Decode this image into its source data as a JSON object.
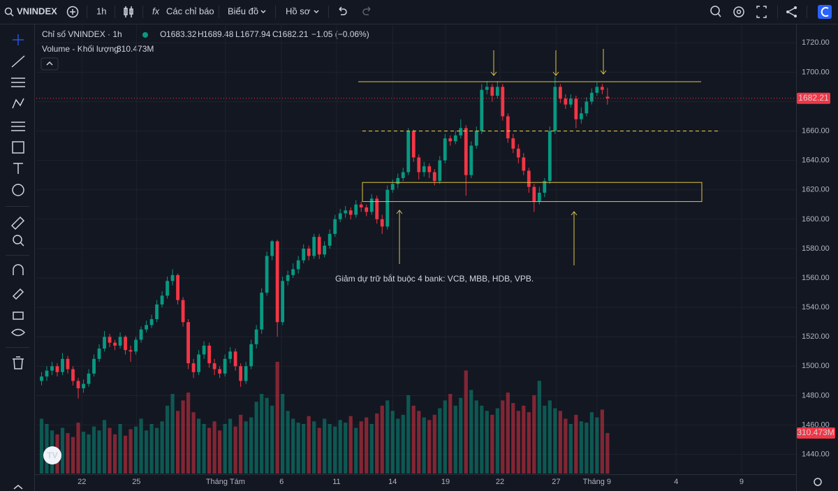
{
  "toolbar": {
    "symbol": "VNINDEX",
    "interval": "1h",
    "indicators": "Các chỉ báo",
    "chart": "Biểu đồ",
    "profile": "Hồ sơ"
  },
  "chart_data": {
    "type": "candlestick",
    "title": "Chỉ số VNINDEX · 1h",
    "ohlc_letters": [
      "O",
      "H",
      "L",
      "C"
    ],
    "change": "−1.05 (−0.06%)",
    "volume_title": "Volume - Khối lượng",
    "last_volume_label": "310.473M",
    "up_color": "#089981",
    "down_color": "#f23645",
    "annotation": "Giảm dự trữ bắt buộc 4 bank: VCB, MBB, HDB, VPB.",
    "levels": [
      1693.5,
      1660
    ],
    "zone": [
      1612,
      1625
    ],
    "ylim": [
      1427,
      1732
    ],
    "yticks": [
      {
        "value": 1440,
        "label": "1440.00"
      },
      {
        "value": 1460,
        "label": "1460.00"
      },
      {
        "value": 1480,
        "label": "1480.00"
      },
      {
        "value": 1500,
        "label": "1500.00"
      },
      {
        "value": 1520,
        "label": "1520.00"
      },
      {
        "value": 1540,
        "label": "1540.00"
      },
      {
        "value": 1560,
        "label": "1560.00"
      },
      {
        "value": 1580,
        "label": "1580.00"
      },
      {
        "value": 1600,
        "label": "1600.00"
      },
      {
        "value": 1620,
        "label": "1620.00"
      },
      {
        "value": 1640,
        "label": "1640.00"
      },
      {
        "value": 1660,
        "label": "1660.00"
      },
      {
        "value": 1680,
        "label": "1680.00"
      },
      {
        "value": 1700,
        "label": "1700.00"
      },
      {
        "value": 1720,
        "label": "1720.00"
      }
    ],
    "xlim": [
      -1,
      144
    ],
    "xticks": [
      {
        "value": 7.7,
        "label": "22"
      },
      {
        "value": 18.1,
        "label": "25"
      },
      {
        "value": 35.1,
        "label": "Tháng Tám"
      },
      {
        "value": 45.8,
        "label": "6"
      },
      {
        "value": 56.3,
        "label": "11"
      },
      {
        "value": 67.0,
        "label": "14"
      },
      {
        "value": 77.1,
        "label": "19"
      },
      {
        "value": 87.5,
        "label": "22"
      },
      {
        "value": 98.2,
        "label": "27"
      },
      {
        "value": 106.0,
        "label": "Tháng 9"
      },
      {
        "value": 121.1,
        "label": "4"
      },
      {
        "value": 133.6,
        "label": "9"
      }
    ],
    "open": [
      1490,
      1493,
      1497,
      1500,
      1496,
      1505,
      1498,
      1490,
      1485,
      1488,
      1495,
      1505,
      1512,
      1520,
      1516,
      1514,
      1520,
      1511,
      1510,
      1518,
      1525,
      1528,
      1532,
      1542,
      1548,
      1558,
      1562,
      1545,
      1530,
      1502,
      1496,
      1508,
      1514,
      1502,
      1498,
      1495,
      1505,
      1510,
      1500,
      1490,
      1500,
      1515,
      1525,
      1550,
      1575,
      1585,
      1530,
      1558,
      1562,
      1566,
      1572,
      1580,
      1575,
      1588,
      1576,
      1582,
      1590,
      1600,
      1604,
      1606,
      1603,
      1610,
      1608,
      1605,
      1614,
      1600,
      1595,
      1620,
      1624,
      1628,
      1632,
      1660,
      1642,
      1632,
      1636,
      1632,
      1626,
      1640,
      1655,
      1653,
      1657,
      1662,
      1630,
      1650,
      1660,
      1688,
      1690,
      1684,
      1690,
      1670,
      1655,
      1648,
      1642,
      1633,
      1622,
      1612,
      1618,
      1626,
      1660,
      1690,
      1682,
      1678,
      1682,
      1668,
      1672,
      1680,
      1686,
      1690,
      1683.32
    ],
    "high": [
      1496,
      1500,
      1503,
      1502,
      1509,
      1507,
      1500,
      1492,
      1491,
      1498,
      1508,
      1515,
      1524,
      1522,
      1518,
      1523,
      1521,
      1514,
      1520,
      1527,
      1531,
      1535,
      1545,
      1551,
      1561,
      1566,
      1563,
      1547,
      1532,
      1505,
      1511,
      1517,
      1516,
      1505,
      1500,
      1508,
      1513,
      1512,
      1502,
      1503,
      1518,
      1528,
      1553,
      1578,
      1586,
      1586,
      1561,
      1565,
      1570,
      1575,
      1583,
      1582,
      1590,
      1590,
      1585,
      1593,
      1603,
      1607,
      1609,
      1608,
      1613,
      1612,
      1610,
      1617,
      1616,
      1603,
      1623,
      1627,
      1631,
      1635,
      1662,
      1661,
      1644,
      1639,
      1638,
      1634,
      1643,
      1658,
      1657,
      1660,
      1668,
      1664,
      1653,
      1663,
      1692,
      1694,
      1692,
      1694,
      1692,
      1672,
      1658,
      1651,
      1645,
      1635,
      1624,
      1622,
      1628,
      1663,
      1697,
      1692,
      1685,
      1685,
      1684,
      1676,
      1683,
      1689,
      1693,
      1692,
      1689.48
    ],
    "low": [
      1487,
      1490,
      1494,
      1493,
      1494,
      1495,
      1487,
      1478,
      1482,
      1486,
      1493,
      1503,
      1510,
      1513,
      1511,
      1512,
      1508,
      1503,
      1508,
      1516,
      1523,
      1526,
      1530,
      1540,
      1546,
      1555,
      1542,
      1527,
      1498,
      1492,
      1494,
      1505,
      1499,
      1494,
      1492,
      1493,
      1502,
      1497,
      1486,
      1488,
      1498,
      1512,
      1522,
      1548,
      1572,
      1520,
      1528,
      1555,
      1560,
      1563,
      1570,
      1572,
      1573,
      1573,
      1574,
      1580,
      1588,
      1598,
      1601,
      1600,
      1601,
      1605,
      1602,
      1603,
      1597,
      1590,
      1593,
      1618,
      1621,
      1626,
      1630,
      1639,
      1627,
      1629,
      1628,
      1623,
      1624,
      1638,
      1650,
      1651,
      1655,
      1616,
      1628,
      1648,
      1658,
      1685,
      1680,
      1682,
      1667,
      1652,
      1645,
      1638,
      1630,
      1618,
      1605,
      1610,
      1615,
      1624,
      1658,
      1679,
      1675,
      1676,
      1662,
      1665,
      1670,
      1678,
      1684,
      1685,
      1677.94
    ],
    "close": [
      1493,
      1497,
      1500,
      1496,
      1505,
      1498,
      1490,
      1485,
      1488,
      1495,
      1505,
      1512,
      1520,
      1516,
      1514,
      1520,
      1511,
      1510,
      1518,
      1525,
      1528,
      1532,
      1542,
      1548,
      1558,
      1562,
      1545,
      1530,
      1502,
      1496,
      1508,
      1514,
      1502,
      1498,
      1495,
      1505,
      1510,
      1500,
      1490,
      1500,
      1515,
      1525,
      1550,
      1575,
      1585,
      1530,
      1558,
      1562,
      1566,
      1572,
      1580,
      1575,
      1588,
      1576,
      1582,
      1590,
      1600,
      1604,
      1606,
      1603,
      1610,
      1608,
      1605,
      1614,
      1600,
      1595,
      1620,
      1624,
      1628,
      1632,
      1660,
      1642,
      1632,
      1636,
      1632,
      1626,
      1640,
      1655,
      1653,
      1657,
      1662,
      1630,
      1650,
      1660,
      1688,
      1690,
      1684,
      1690,
      1670,
      1655,
      1648,
      1642,
      1633,
      1622,
      1612,
      1618,
      1626,
      1660,
      1690,
      1682,
      1678,
      1682,
      1668,
      1672,
      1680,
      1686,
      1690,
      1688,
      1682.21
    ],
    "volume": [
      420,
      380,
      330,
      300,
      350,
      310,
      280,
      390,
      320,
      300,
      360,
      330,
      410,
      350,
      300,
      380,
      290,
      340,
      360,
      420,
      330,
      380,
      350,
      400,
      520,
      610,
      480,
      560,
      620,
      470,
      420,
      380,
      350,
      400,
      330,
      380,
      420,
      360,
      450,
      400,
      430,
      550,
      610,
      580,
      520,
      856,
      610,
      480,
      420,
      390,
      380,
      440,
      400,
      350,
      420,
      380,
      360,
      410,
      390,
      440,
      350,
      400,
      430,
      380,
      460,
      520,
      560,
      480,
      420,
      450,
      600,
      520,
      480,
      430,
      410,
      450,
      500,
      560,
      610,
      520,
      580,
      790,
      640,
      560,
      520,
      480,
      450,
      500,
      560,
      620,
      540,
      480,
      520,
      470,
      600,
      710,
      520,
      560,
      500,
      480,
      420,
      380,
      450,
      400,
      390,
      470,
      430,
      490,
      310.473
    ]
  }
}
